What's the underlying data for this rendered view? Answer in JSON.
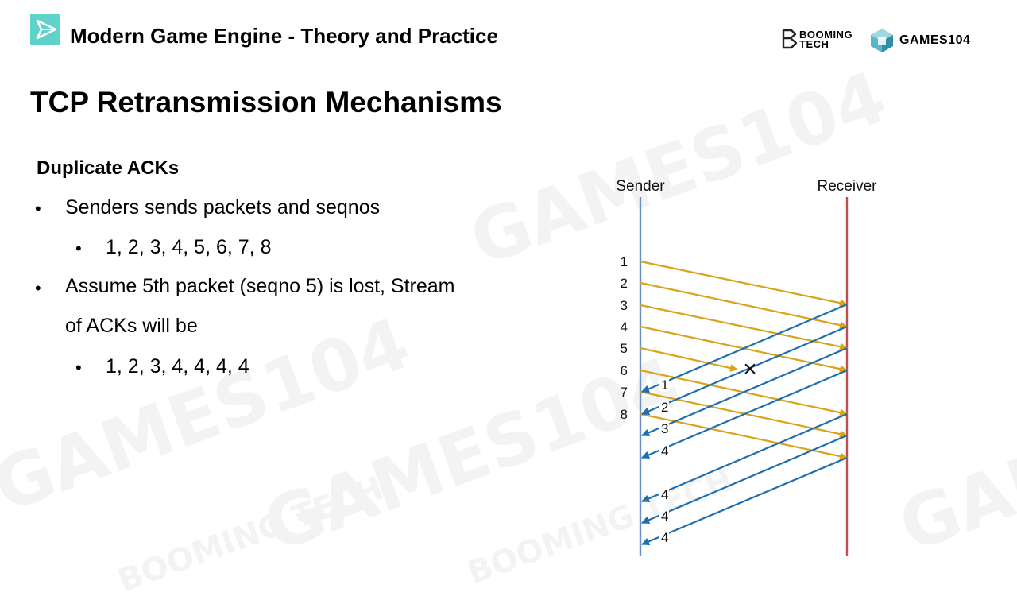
{
  "header": {
    "course_title": "Modern Game Engine - Theory and Practice",
    "brand_booming": [
      "BOOMING",
      "TECH"
    ],
    "brand_games": "GAMES104"
  },
  "slide": {
    "title": "TCP Retransmission Mechanisms",
    "section_heading": "Duplicate ACKs",
    "bullets": [
      "Senders sends packets and seqnos",
      "1, 2, 3, 4, 5, 6, 7, 8",
      "Assume 5th packet (seqno 5) is lost, Stream",
      "of ACKs will be",
      "1, 2, 3, 4, 4, 4, 4"
    ],
    "bullet_glyph": "•"
  },
  "diagram": {
    "sender_label": "Sender",
    "receiver_label": "Receiver",
    "packet_labels": [
      "1",
      "2",
      "3",
      "4",
      "5",
      "6",
      "7",
      "8"
    ],
    "ack_labels": [
      "1",
      "2",
      "3",
      "4",
      "4",
      "4",
      "4"
    ],
    "lost_packet": "5",
    "lost_marker": "×",
    "colors": {
      "sender_line": "#6b8fc9",
      "receiver_line": "#c0504d",
      "packet_arrow": "#d9a31a",
      "ack_arrow": "#1f6fb0"
    }
  },
  "watermark": [
    "GAMES104",
    "BOOMING TECH"
  ]
}
